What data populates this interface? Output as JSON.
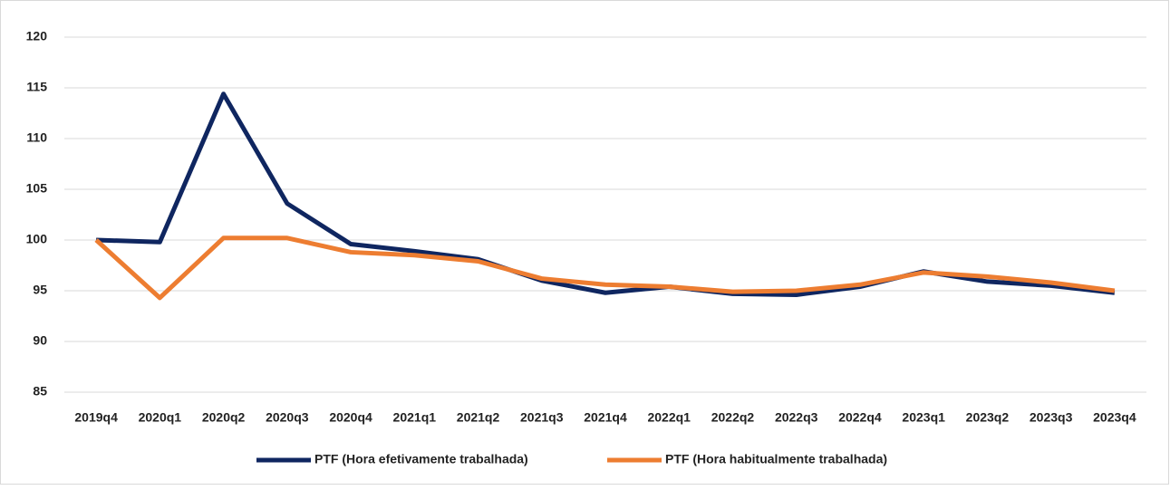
{
  "chart_data": {
    "type": "line",
    "categories": [
      "2019q4",
      "2020q1",
      "2020q2",
      "2020q3",
      "2020q4",
      "2021q1",
      "2021q2",
      "2021q3",
      "2021q4",
      "2022q1",
      "2022q2",
      "2022q3",
      "2022q4",
      "2023q1",
      "2023q2",
      "2023q3",
      "2023q4"
    ],
    "series": [
      {
        "name": "PTF (Hora efetivamente trabalhada)",
        "color": "#0f2660",
        "values": [
          100,
          99.8,
          114.4,
          103.6,
          99.6,
          98.9,
          98.1,
          96.0,
          94.8,
          95.4,
          94.7,
          94.6,
          95.4,
          96.9,
          95.9,
          95.5,
          94.8
        ]
      },
      {
        "name": "PTF (Hora habitualmente trabalhada)",
        "color": "#ed7d31",
        "values": [
          100,
          94.3,
          100.2,
          100.2,
          98.8,
          98.5,
          97.9,
          96.2,
          95.6,
          95.4,
          94.9,
          95.0,
          95.6,
          96.8,
          96.4,
          95.8,
          95.0
        ]
      }
    ],
    "ylim": [
      85,
      120
    ],
    "yticks": [
      85,
      90,
      95,
      100,
      105,
      110,
      115,
      120
    ],
    "grid": true,
    "legend": "bottom"
  }
}
